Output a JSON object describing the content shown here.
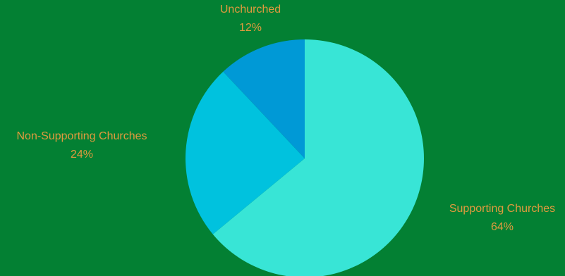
{
  "background_color": "#038033",
  "label_color": "#E09A3E",
  "chart_data": {
    "type": "pie",
    "title": "",
    "start_angle_deg": 0,
    "direction": "clockwise",
    "slices": [
      {
        "label": "Supporting Churches",
        "value": 64,
        "percent_label": "64%",
        "color": "#38E5D6"
      },
      {
        "label": "Non-Supporting Churches",
        "value": 24,
        "percent_label": "24%",
        "color": "#00C2DE"
      },
      {
        "label": "Unchurched",
        "value": 12,
        "percent_label": "12%",
        "color": "#0099D6"
      }
    ]
  }
}
